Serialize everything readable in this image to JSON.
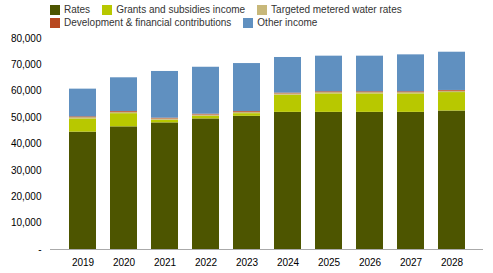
{
  "chart_data": {
    "type": "bar",
    "stacked": true,
    "categories": [
      "2019",
      "2020",
      "2021",
      "2022",
      "2023",
      "2024",
      "2025",
      "2026",
      "2027",
      "2028"
    ],
    "series": [
      {
        "name": "Rates",
        "color": "#4d5500",
        "values": [
          44500,
          46500,
          48000,
          49500,
          50500,
          52000,
          52000,
          52000,
          52000,
          52500
        ]
      },
      {
        "name": "Grants and subsidies income",
        "color": "#b8c800",
        "values": [
          5000,
          5000,
          1000,
          1000,
          1000,
          6500,
          7000,
          7000,
          7000,
          7000
        ]
      },
      {
        "name": "Targeted metered water rates",
        "color": "#c8b87a",
        "values": [
          500,
          500,
          500,
          500,
          500,
          500,
          500,
          500,
          500,
          500
        ]
      },
      {
        "name": "Development & financial contributions",
        "color": "#b84820",
        "values": [
          300,
          300,
          300,
          300,
          300,
          300,
          300,
          300,
          300,
          300
        ]
      },
      {
        "name": "Other income",
        "color": "#6090c0",
        "values": [
          10500,
          12800,
          17700,
          17800,
          18200,
          13500,
          13500,
          13500,
          14000,
          14500
        ]
      }
    ],
    "ylim": [
      0,
      80000
    ],
    "yticks": [
      {
        "value": 0,
        "label": "-"
      },
      {
        "value": 10000,
        "label": "10,000"
      },
      {
        "value": 20000,
        "label": "20,000"
      },
      {
        "value": 30000,
        "label": "30,000"
      },
      {
        "value": 40000,
        "label": "40,000"
      },
      {
        "value": 50000,
        "label": "50,000"
      },
      {
        "value": 60000,
        "label": "60,000"
      },
      {
        "value": 70000,
        "label": "70,000"
      },
      {
        "value": 80000,
        "label": "80,000"
      }
    ],
    "grid": false,
    "legend": "upper left"
  }
}
